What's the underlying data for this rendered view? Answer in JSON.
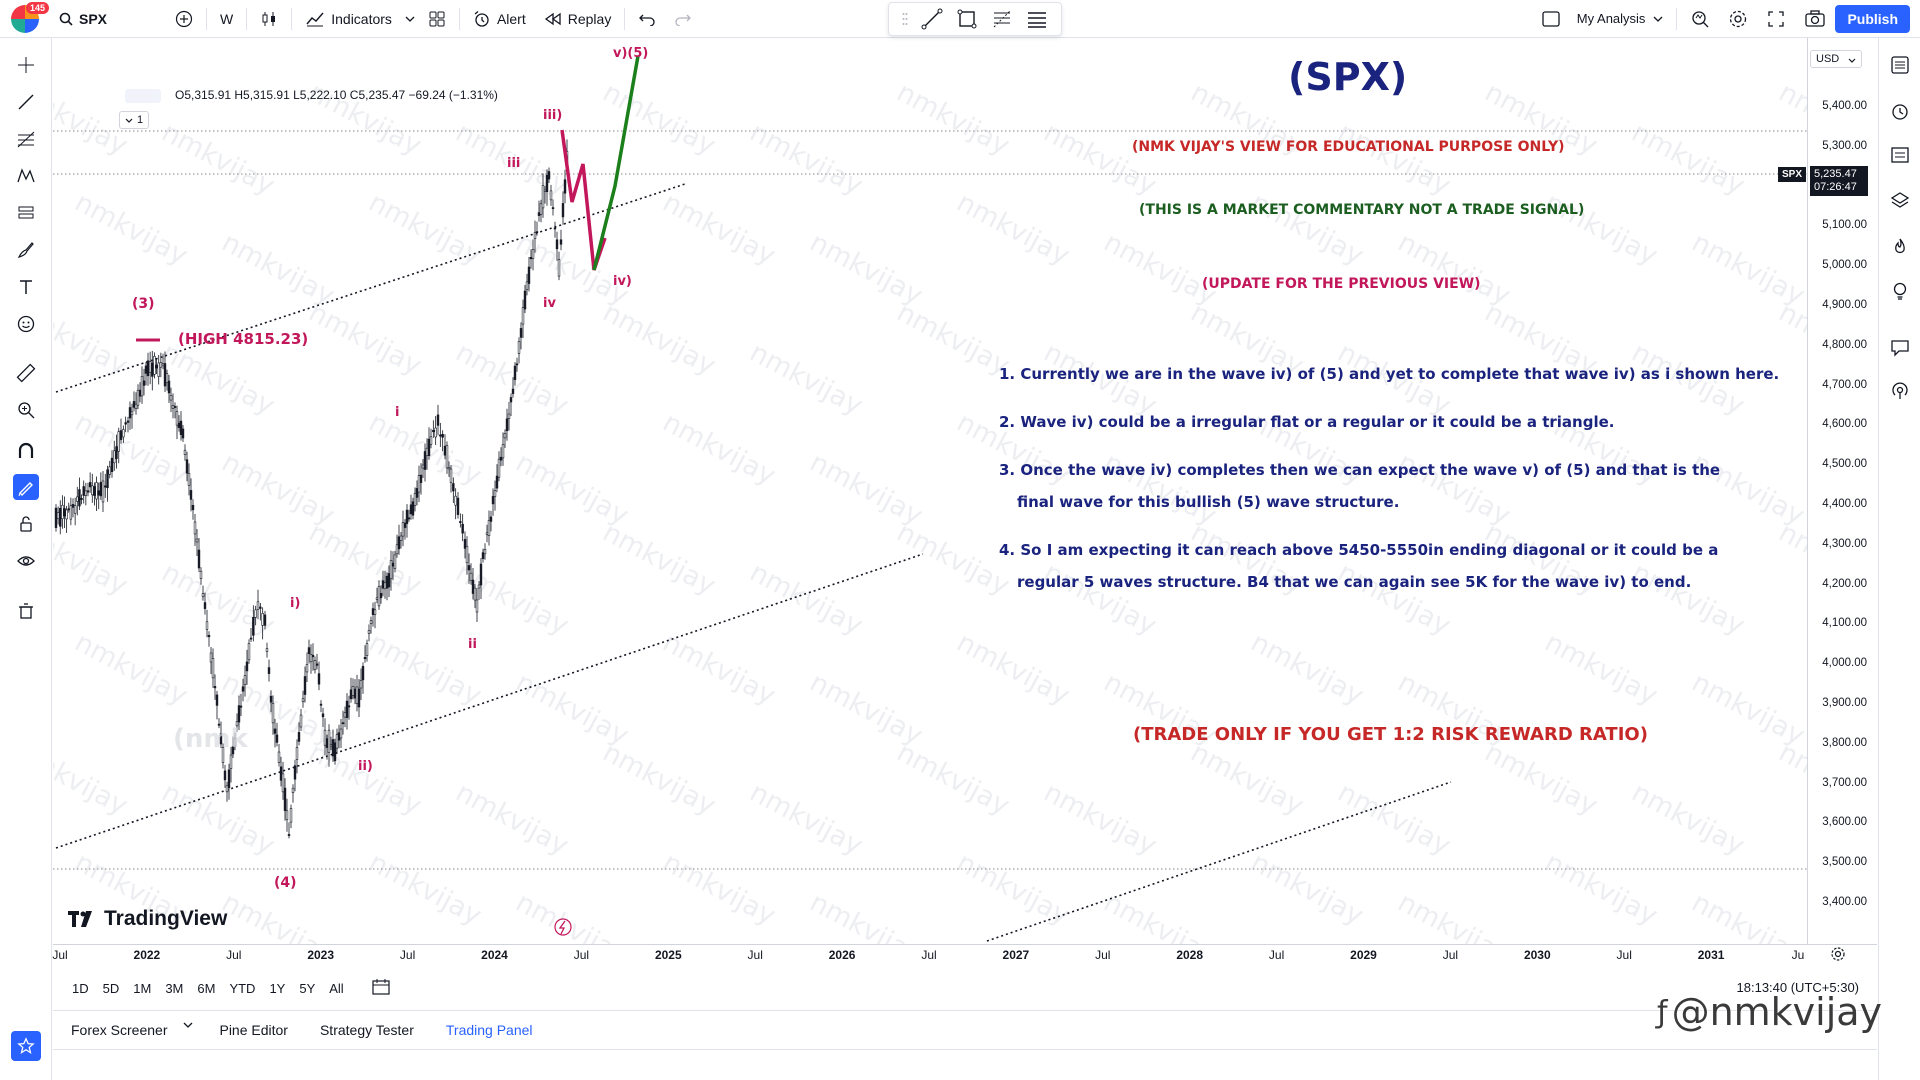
{
  "topbar": {
    "notification_badge": "145",
    "symbol": "SPX",
    "interval": "W",
    "indicators": "Indicators",
    "alert": "Alert",
    "replay": "Replay",
    "layout_name": "My Analysis",
    "publish": "Publish"
  },
  "legend": {
    "ohlc": "O5,315.91 H5,315.91 L5,222.10 C5,235.47 −69.24 (−1.31%)",
    "collapse": "1"
  },
  "annotations": {
    "title": "(SPX)",
    "disclaimer": "(NMK VIJAY'S VIEW FOR EDUCATIONAL PURPOSE ONLY)",
    "commentary": "(THIS IS A MARKET COMMENTARY NOT A TRADE SIGNAL)",
    "update": "(UPDATE FOR THE PREVIOUS VIEW)",
    "point1": "1. Currently we are in the wave iv) of (5) and yet to complete that wave iv) as i shown here.",
    "point2": "2. Wave iv) could be a irregular flat or a regular or it could be a triangle.",
    "point3a": "3. Once the wave iv) completes then we can expect the wave v) of (5) and that is the",
    "point3b": "final wave for this bullish (5) wave structure.",
    "point4a": "4. So I am expecting it can reach above 5450-5550in ending diagonal or it could be a",
    "point4b": "regular 5 waves structure. B4 that we can again see 5K for the wave iv) to end.",
    "trade_rule": "(TRADE ONLY IF YOU GET 1:2 RISK REWARD RATIO)"
  },
  "wave_labels": {
    "w3": "(3)",
    "high": "(HIGH 4815.23)",
    "w4": "(4)",
    "i_small": "i)",
    "ii_small": "ii)",
    "i": "i",
    "ii": "ii",
    "iii": "iii",
    "iv": "iv",
    "iii_paren": "iii)",
    "iv_paren": "iv)",
    "v5": "v)(5)",
    "ghost": "(nmk"
  },
  "watermark": "nmkvijay",
  "price_scale": {
    "currency": "USD",
    "ticks": [
      "5,400.00",
      "5,300.00",
      "5,200.00",
      "5,100.00",
      "5,000.00",
      "4,900.00",
      "4,800.00",
      "4,700.00",
      "4,600.00",
      "4,500.00",
      "4,400.00",
      "4,300.00",
      "4,200.00",
      "4,100.00",
      "4,000.00",
      "3,900.00",
      "3,800.00",
      "3,700.00",
      "3,600.00",
      "3,500.00",
      "3,400.00"
    ],
    "symbol_tag": "SPX",
    "last_price": "5,235.47",
    "countdown": "07:26:47"
  },
  "time_scale": {
    "ticks": [
      {
        "label": "Jul",
        "year": false
      },
      {
        "label": "2022",
        "year": true
      },
      {
        "label": "Jul",
        "year": false
      },
      {
        "label": "2023",
        "year": true
      },
      {
        "label": "Jul",
        "year": false
      },
      {
        "label": "2024",
        "year": true
      },
      {
        "label": "Jul",
        "year": false
      },
      {
        "label": "2025",
        "year": true
      },
      {
        "label": "Jul",
        "year": false
      },
      {
        "label": "2026",
        "year": true
      },
      {
        "label": "Jul",
        "year": false
      },
      {
        "label": "2027",
        "year": true
      },
      {
        "label": "Jul",
        "year": false
      },
      {
        "label": "2028",
        "year": true
      },
      {
        "label": "Jul",
        "year": false
      },
      {
        "label": "2029",
        "year": true
      },
      {
        "label": "Jul",
        "year": false
      },
      {
        "label": "2030",
        "year": true
      },
      {
        "label": "Jul",
        "year": false
      },
      {
        "label": "2031",
        "year": true
      },
      {
        "label": "Ju",
        "year": false
      }
    ]
  },
  "range_bar": {
    "ranges": [
      "1D",
      "5D",
      "1M",
      "3M",
      "6M",
      "YTD",
      "1Y",
      "5Y",
      "All"
    ],
    "clock": "18:13:40 (UTC+5:30)"
  },
  "bottom_panel": {
    "tabs": [
      "Forex Screener",
      "Pine Editor",
      "Strategy Tester",
      "Trading Panel"
    ]
  },
  "brand": "TradingView",
  "handle": "@nmkvijay",
  "colors": {
    "accent": "#2962ff",
    "wave_red": "#c2185b",
    "wave_green": "#1b7f1b",
    "ann_navy": "#1a237e",
    "ann_red": "#c62828",
    "ann_green": "#1b5e20",
    "ann_magenta": "#c2185b"
  }
}
